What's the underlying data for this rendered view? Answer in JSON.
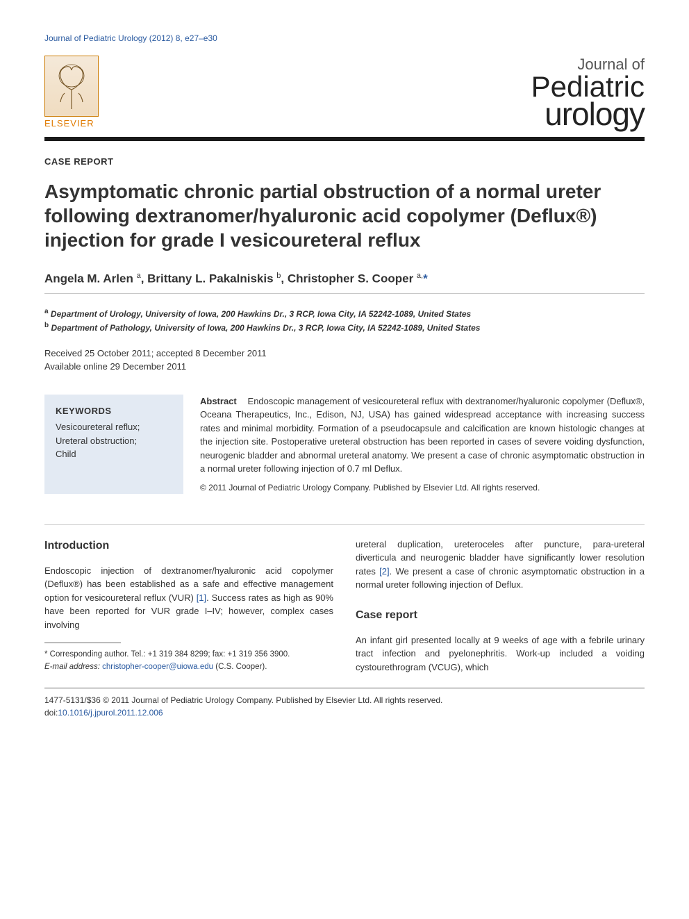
{
  "header": {
    "citation": "Journal of Pediatric Urology (2012) 8, e27–e30",
    "publisher_label": "ELSEVIER",
    "journal_line1": "Journal of",
    "journal_line2": "Pediatric",
    "journal_line3": "urology"
  },
  "meta": {
    "article_type": "CASE REPORT",
    "title": "Asymptomatic chronic partial obstruction of a normal ureter following dextranomer/hyaluronic acid copolymer (Deflux®) injection for grade I vesicoureteral reflux",
    "authors_html": "Angela M. Arlen <sup>a</sup>, Brittany L. Pakalniskis <sup>b</sup>, Christopher S. Cooper <sup>a,</sup><span class='author-star'>*</span>",
    "affiliations": [
      "Department of Urology, University of Iowa, 200 Hawkins Dr., 3 RCP, Iowa City, IA 52242-1089, United States",
      "Department of Pathology, University of Iowa, 200 Hawkins Dr., 3 RCP, Iowa City, IA 52242-1089, United States"
    ],
    "aff_labels": [
      "a",
      "b"
    ],
    "received": "Received 25 October 2011; accepted 8 December 2011",
    "online": "Available online 29 December 2011"
  },
  "keywords": {
    "head": "KEYWORDS",
    "items": "Vesicoureteral reflux;\nUreteral obstruction;\nChild"
  },
  "abstract": {
    "head": "Abstract",
    "body": "Endoscopic management of vesicoureteral reflux with dextranomer/hyaluronic copolymer (Deflux®, Oceana Therapeutics, Inc., Edison, NJ, USA) has gained widespread acceptance with increasing success rates and minimal morbidity. Formation of a pseudocapsule and calcification are known histologic changes at the injection site. Postoperative ureteral obstruction has been reported in cases of severe voiding dysfunction, neurogenic bladder and abnormal ureteral anatomy. We present a case of chronic asymptomatic obstruction in a normal ureter following injection of 0.7 ml Deflux.",
    "copyright": "© 2011 Journal of Pediatric Urology Company. Published by Elsevier Ltd. All rights reserved."
  },
  "body": {
    "intro_head": "Introduction",
    "intro_p1_a": "Endoscopic injection of dextranomer/hyaluronic acid copolymer (Deflux®) has been established as a safe and effective management option for vesicoureteral reflux (VUR) ",
    "intro_ref1": "[1]",
    "intro_p1_b": ". Success rates as high as 90% have been reported for VUR grade I–IV; however, complex cases involving",
    "intro_p2_a": "ureteral duplication, ureteroceles after puncture, para-ureteral diverticula and neurogenic bladder have significantly lower resolution rates ",
    "intro_ref2": "[2]",
    "intro_p2_b": ". We present a case of chronic asymptomatic obstruction in a normal ureter following injection of Deflux.",
    "case_head": "Case report",
    "case_p1": "An infant girl presented locally at 9 weeks of age with a febrile urinary tract infection and pyelonephritis. Work-up included a voiding cystourethrogram (VCUG), which"
  },
  "corresponding": {
    "line1": "* Corresponding author. Tel.: +1 319 384 8299; fax: +1 319 356 3900.",
    "line2_label": "E-mail address: ",
    "email": "christopher-cooper@uiowa.edu",
    "line2_suffix": " (C.S. Cooper)."
  },
  "footer": {
    "line1": "1477-5131/$36 © 2011 Journal of Pediatric Urology Company. Published by Elsevier Ltd. All rights reserved.",
    "doi_label": "doi:",
    "doi": "10.1016/j.jpurol.2011.12.006"
  },
  "colors": {
    "link": "#2a5aa0",
    "elsevier_orange": "#e07a00",
    "keywords_bg": "#e3eaf3",
    "rule_dark": "#1a1a1a",
    "rule_gray": "#c8c8c8",
    "text": "#333333"
  },
  "typography": {
    "title_fontsize": 28,
    "author_fontsize": 17,
    "body_fontsize": 13,
    "header_citation_fontsize": 12
  }
}
